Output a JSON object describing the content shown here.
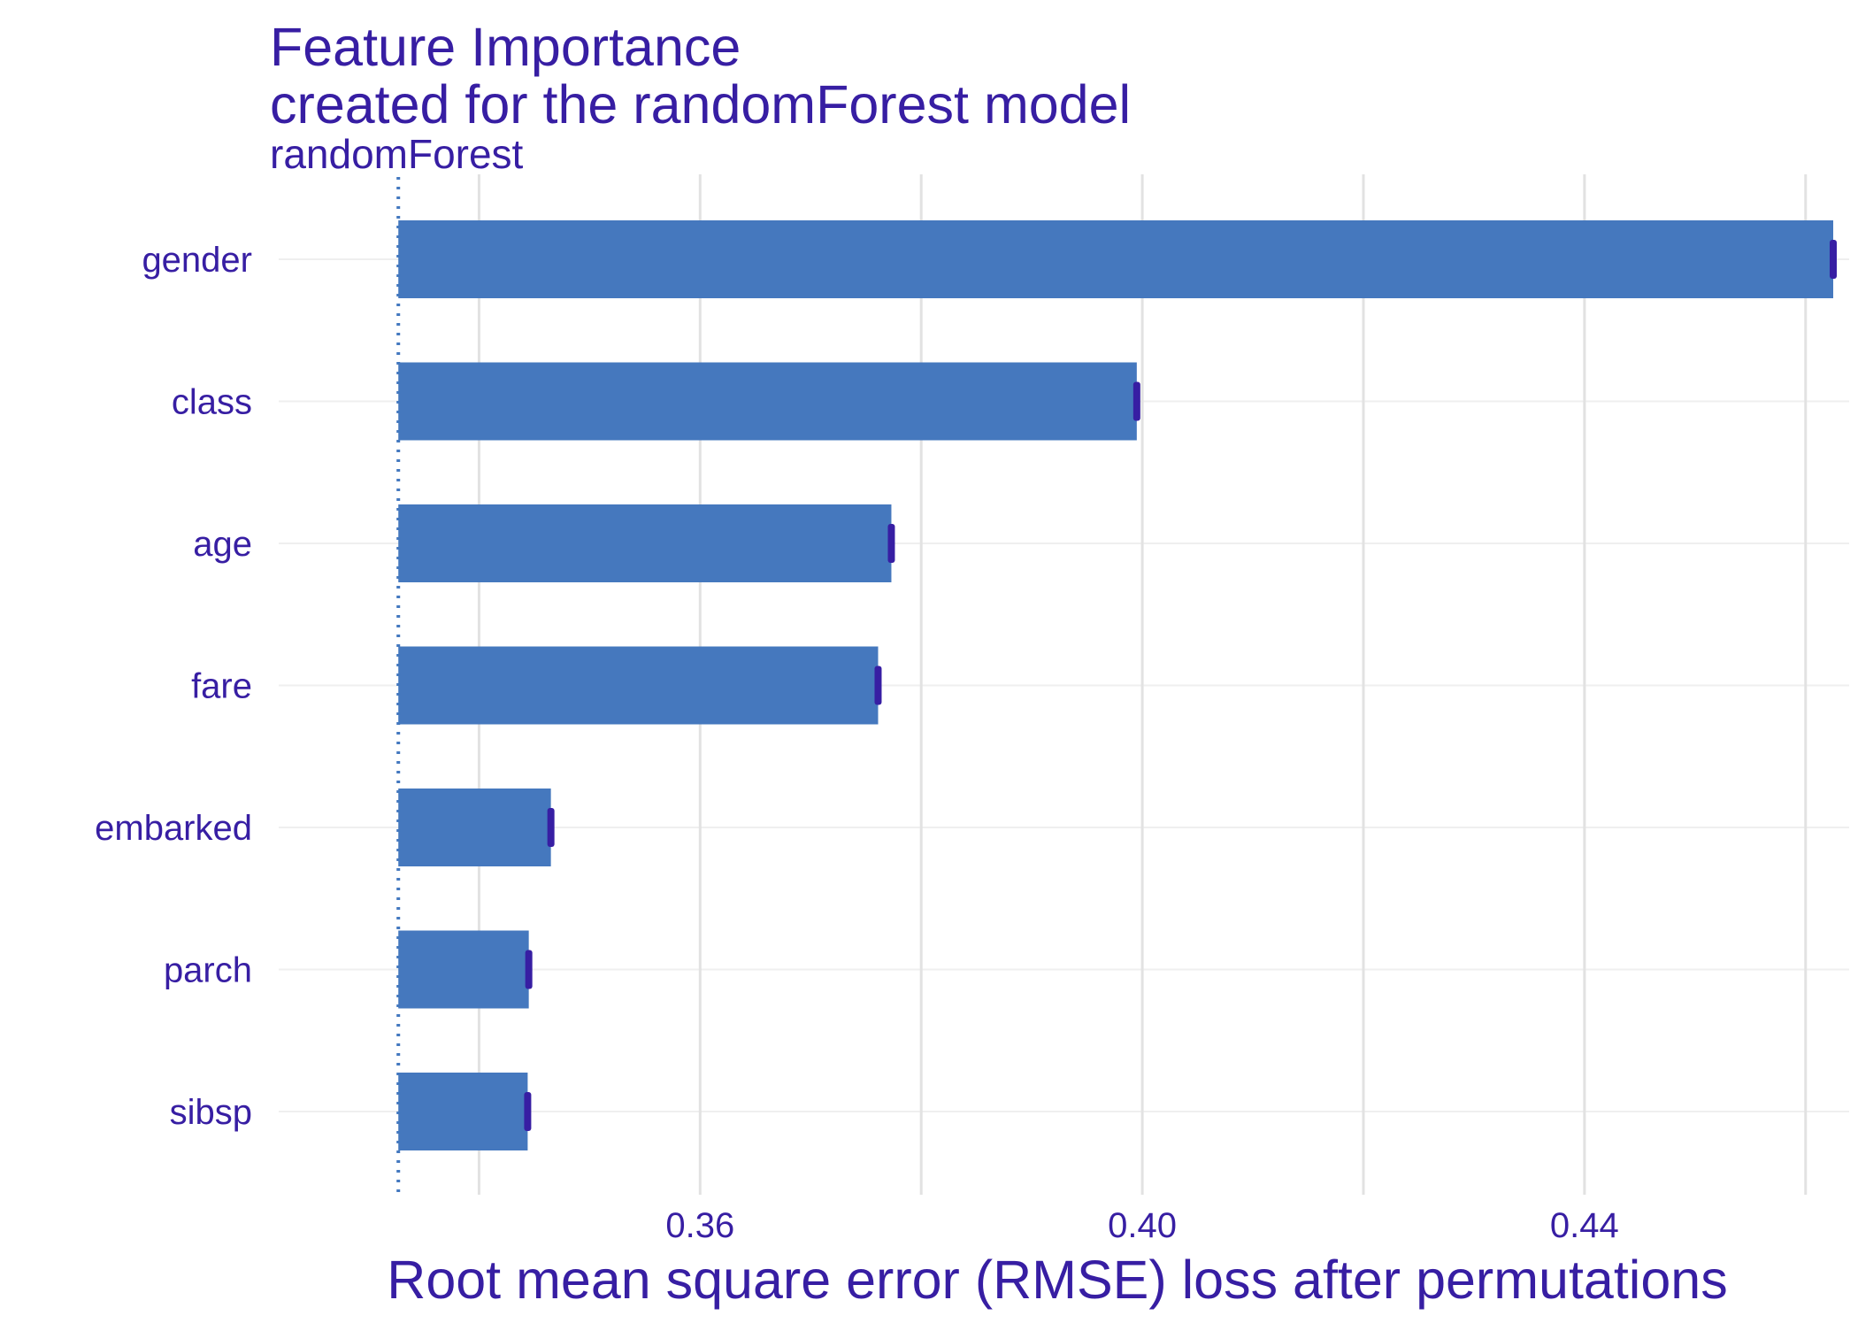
{
  "chart_data": {
    "type": "bar",
    "orientation": "horizontal",
    "title": "Feature Importance",
    "subtitle": "created for the randomForest model",
    "facet_label": "randomForest",
    "xlabel": "Root mean square error (RMSE) loss after permutations",
    "ylabel": "",
    "categories": [
      "gender",
      "class",
      "age",
      "fare",
      "embarked",
      "parch",
      "sibsp"
    ],
    "values": [
      0.4625,
      0.3995,
      0.3773,
      0.3761,
      0.3465,
      0.3445,
      0.3444
    ],
    "baseline": 0.3327,
    "xlim": [
      0.3274,
      0.4605
    ],
    "x_ticks": [
      {
        "value": 0.36,
        "label": "0.36"
      },
      {
        "value": 0.4,
        "label": "0.40"
      },
      {
        "value": 0.44,
        "label": "0.44"
      }
    ],
    "x_minor_gridlines": [
      0.34,
      0.38,
      0.42,
      0.46
    ],
    "grid": true,
    "legend": "none",
    "colors": {
      "bar": "#4578BE",
      "text": "#371EA3",
      "interval": "#371EA3",
      "baseline": "#4378BF",
      "grid": "#E2E2E2"
    }
  }
}
